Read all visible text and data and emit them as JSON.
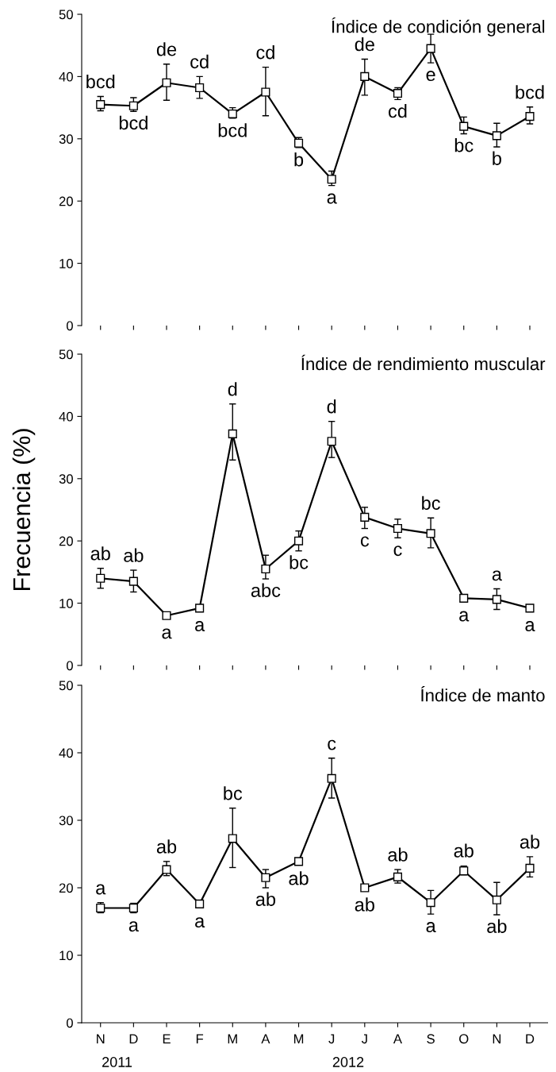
{
  "chart_data": [
    {
      "type": "line",
      "title": "Índice de condición general",
      "categories": [
        null,
        null,
        null,
        null,
        null,
        null,
        null,
        null,
        null,
        null,
        null,
        null,
        null,
        null
      ],
      "series": [
        {
          "color": "#000000",
          "values": [
            35.5,
            35.3,
            39,
            38.2,
            34,
            37.5,
            29.3,
            23.5,
            40,
            37.3,
            44.5,
            32,
            30.5,
            33.6
          ],
          "errors": [
            [
              34.5,
              36.8
            ],
            [
              34.4,
              36.6
            ],
            [
              36.2,
              42
            ],
            [
              36.5,
              40
            ],
            [
              33.3,
              35
            ],
            [
              33.7,
              41.5
            ],
            [
              28.6,
              30.2
            ],
            [
              22.5,
              24.8
            ],
            [
              37,
              42.8
            ],
            [
              36.3,
              38.2
            ],
            [
              42.2,
              46.8
            ],
            [
              30.8,
              33.5
            ],
            [
              28.7,
              32.5
            ],
            [
              32.4,
              35.1
            ]
          ],
          "value_labels": [
            "bcd",
            "bcd",
            "de",
            "cd",
            "bcd",
            "cd",
            "b",
            "a",
            "de",
            "cd",
            "e",
            "bc",
            "b",
            "bcd"
          ]
        }
      ],
      "ylim": [
        0,
        50
      ],
      "yticks": [
        0,
        10,
        20,
        30,
        40,
        50
      ],
      "marker": "square",
      "line_style": "solid",
      "tick_labels": "y"
    },
    {
      "type": "line",
      "title": "Índice de rendimiento muscular",
      "ylabel": "Frecuencia (%)",
      "categories": [
        null,
        null,
        null,
        null,
        null,
        null,
        null,
        null,
        null,
        null,
        null,
        null,
        null,
        null
      ],
      "series": [
        {
          "color": "#000000",
          "values": [
            14,
            13.5,
            8,
            9.2,
            37.2,
            15.5,
            20,
            36,
            23.8,
            22,
            21.2,
            10.8,
            10.6,
            9.2
          ],
          "errors": [
            [
              12.4,
              15.6
            ],
            [
              11.8,
              15.3
            ],
            null,
            null,
            [
              33,
              42
            ],
            [
              13.9,
              17.7
            ],
            [
              18.4,
              21.6
            ],
            [
              33.4,
              39.2
            ],
            [
              22,
              25.4
            ],
            [
              20.5,
              23.5
            ],
            [
              18.9,
              23.7
            ],
            null,
            [
              9,
              12.3
            ],
            null
          ],
          "value_labels": [
            "ab",
            "ab",
            "a",
            "a",
            "d",
            "abc",
            "bc",
            "d",
            "c",
            "c",
            "bc",
            "a",
            "a",
            "a"
          ]
        }
      ],
      "ylim": [
        0,
        50
      ],
      "yticks": [
        0,
        10,
        20,
        30,
        40,
        50
      ],
      "marker": "square",
      "line_style": "solid",
      "tick_labels": "y"
    },
    {
      "type": "line",
      "title": "Índice de manto",
      "categories": [
        "N",
        "D",
        "E",
        "F",
        "M",
        "A",
        "M",
        "J",
        "J",
        "A",
        "S",
        "O",
        "N",
        "D"
      ],
      "series": [
        {
          "color": "#000000",
          "values": [
            17,
            17,
            22.7,
            17.6,
            27.3,
            21.5,
            23.9,
            36.2,
            20,
            21.6,
            17.8,
            22.5,
            18.2,
            22.9
          ],
          "errors": [
            [
              16.3,
              17.8
            ],
            [
              16.3,
              17.7
            ],
            [
              21.8,
              23.9
            ],
            null,
            [
              23,
              31.8
            ],
            [
              20,
              22.7
            ],
            null,
            [
              33.3,
              39.2
            ],
            null,
            [
              20.7,
              22.7
            ],
            [
              16.1,
              19.6
            ],
            [
              21.9,
              23.2
            ],
            [
              16,
              20.8
            ],
            [
              21.6,
              24.6
            ]
          ],
          "value_labels": [
            "a",
            "a",
            "ab",
            "a",
            "bc",
            "ab",
            "ab",
            "c",
            "ab",
            "ab",
            "a",
            "ab",
            "ab",
            "ab"
          ]
        }
      ],
      "ylim": [
        0,
        50
      ],
      "yticks": [
        0,
        10,
        20,
        30,
        40,
        50
      ],
      "marker": "square",
      "line_style": "solid",
      "annotations": [
        "2011",
        "2012"
      ]
    }
  ]
}
